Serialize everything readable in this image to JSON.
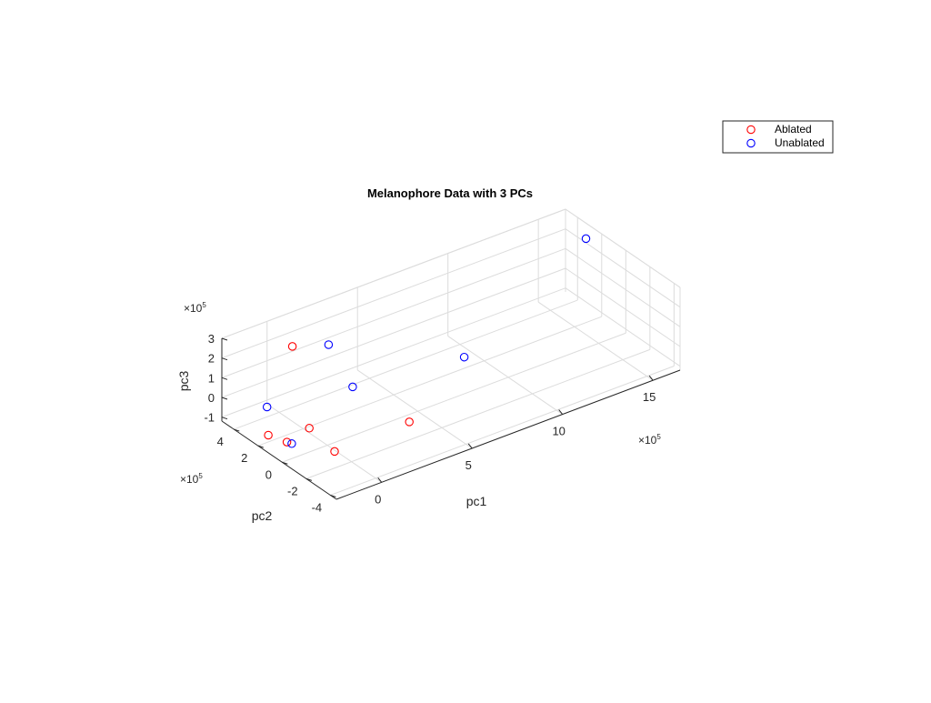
{
  "chart_data": {
    "type": "scatter",
    "title": "Melanophore Data with 3 PCs",
    "xlabel": "pc1",
    "ylabel": "pc2",
    "zlabel": "pc3",
    "multiplier_base": "×10",
    "multiplier_exp": "5",
    "xlim": [
      -2.5,
      16.5
    ],
    "ylim": [
      -4.5,
      5.0
    ],
    "zlim": [
      -1.2,
      3.0
    ],
    "xticks": [
      0,
      5,
      10,
      15
    ],
    "xtick_labels": [
      "0",
      "5",
      "10",
      "15"
    ],
    "yticks": [
      4,
      2,
      0,
      -2,
      -4
    ],
    "ytick_labels": [
      "4",
      "2",
      "0",
      "-2",
      "-4"
    ],
    "zticks": [
      3,
      2,
      1,
      0,
      -1
    ],
    "ztick_labels": [
      "3",
      "2",
      "1",
      "0",
      "-1"
    ],
    "grid": true,
    "legend_position": "top-right",
    "series": [
      {
        "name": "Ablated",
        "color": "#ff0000",
        "points": [
          {
            "x": -0.2,
            "y": 2.6,
            "z": 2.8
          },
          {
            "x": -1.4,
            "y": -0.6,
            "z": 0.4
          },
          {
            "x": -2.2,
            "y": 1.6,
            "z": -0.6
          },
          {
            "x": -2.1,
            "y": 0.2,
            "z": -0.4
          },
          {
            "x": -1.2,
            "y": -2.4,
            "z": -0.1
          },
          {
            "x": 2.6,
            "y": -2.9,
            "z": 0.3
          }
        ]
      },
      {
        "name": "Unablated",
        "color": "#0000ff",
        "points": [
          {
            "x": 2.0,
            "y": 2.9,
            "z": 2.0
          },
          {
            "x": -1.8,
            "y": 2.3,
            "z": 0.4
          },
          {
            "x": 2.2,
            "y": 1.2,
            "z": 0.5
          },
          {
            "x": -1.7,
            "y": 0.4,
            "z": -0.7
          },
          {
            "x": 6.5,
            "y": -1.6,
            "z": 1.7
          },
          {
            "x": 15.9,
            "y": 2.4,
            "z": 2.8
          }
        ]
      }
    ]
  }
}
